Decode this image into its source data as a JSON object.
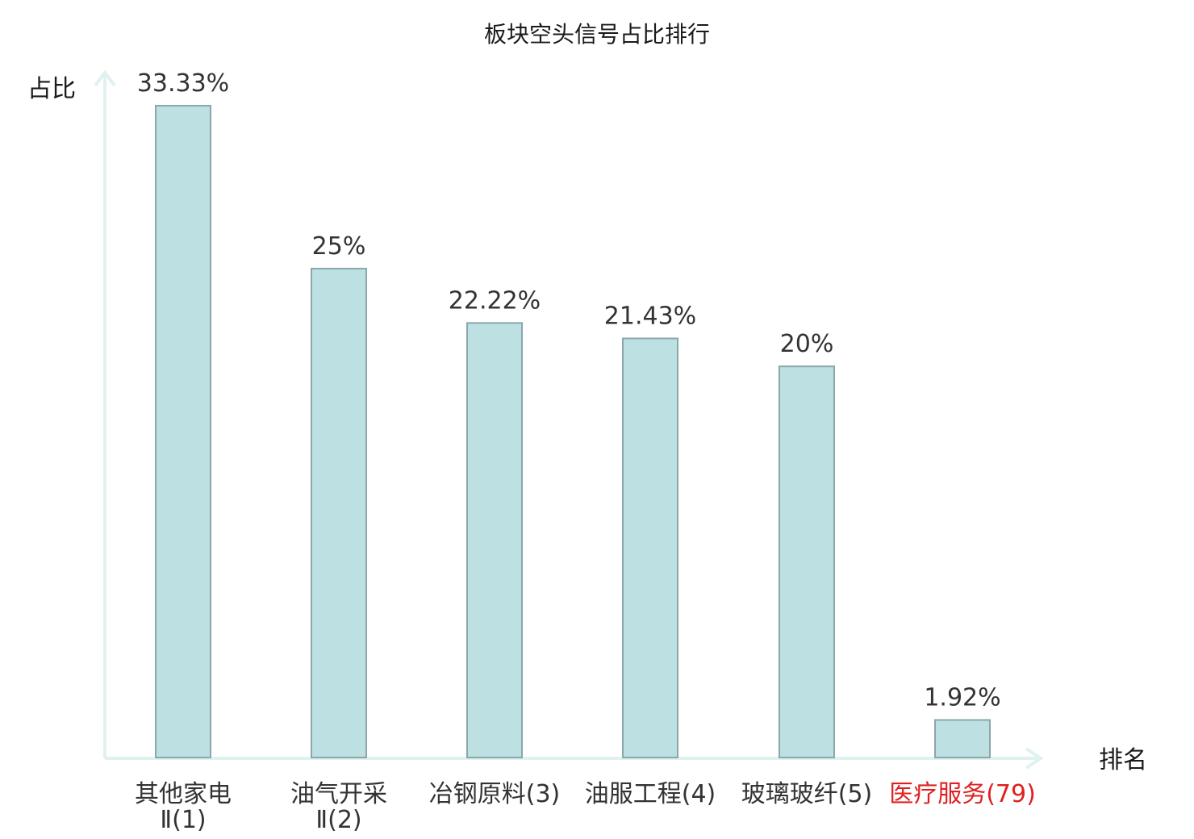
{
  "chart_data": {
    "type": "bar",
    "title": "板块空头信号占比排行",
    "ylabel": "占比",
    "xlabel": "排名",
    "categories": [
      {
        "name_lines": [
          "其他家电",
          "Ⅱ(1)"
        ],
        "highlight": false
      },
      {
        "name_lines": [
          "油气开采",
          "Ⅱ(2)"
        ],
        "highlight": false
      },
      {
        "name_lines": [
          "冶钢原料(3)"
        ],
        "highlight": false
      },
      {
        "name_lines": [
          "油服工程(4)"
        ],
        "highlight": false
      },
      {
        "name_lines": [
          "玻璃玻纤(5)"
        ],
        "highlight": false
      },
      {
        "name_lines": [
          "医疗服务(79)"
        ],
        "highlight": true
      }
    ],
    "values": [
      33.33,
      25,
      22.22,
      21.43,
      20,
      1.92
    ],
    "value_labels": [
      "33.33%",
      "25%",
      "22.22%",
      "21.43%",
      "20%",
      "1.92%"
    ],
    "ylim": [
      0,
      33.33
    ],
    "grid": false,
    "colors": {
      "bar_fill": "#bde0e3",
      "bar_stroke": "#8aa7aa",
      "axis": "#dff2ef",
      "highlight_text": "#e02020"
    }
  }
}
